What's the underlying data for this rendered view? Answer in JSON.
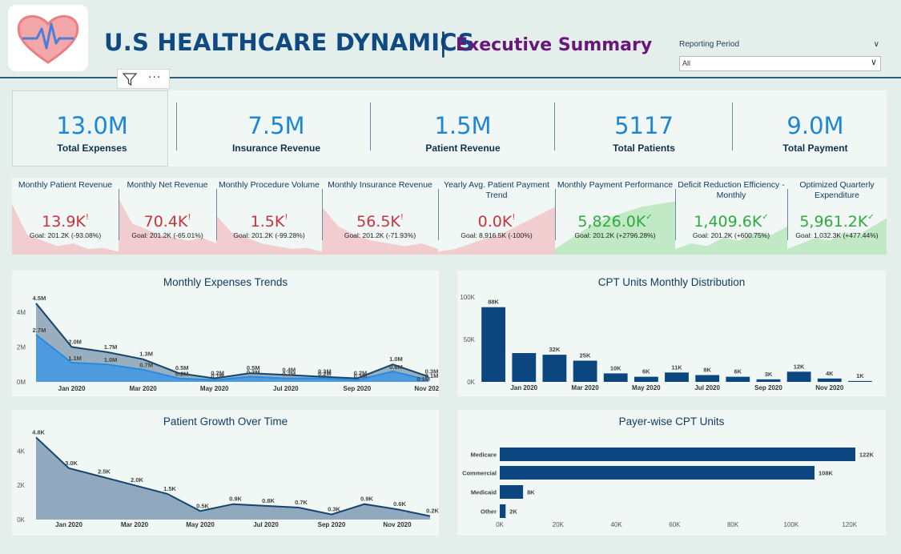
{
  "header": {
    "title": "U.S HEALTHCARE DYNAMICS",
    "separator": "|",
    "subtitle": "Executive Summary",
    "logo_icon": "heart-pulse-icon"
  },
  "filter": {
    "label": "Reporting Period",
    "value": "All"
  },
  "visual_header": {
    "filter_icon": "filter-icon",
    "more_label": "···"
  },
  "kpis": [
    {
      "value": "13.0M",
      "label": "Total Expenses"
    },
    {
      "value": "7.5M",
      "label": "Insurance Revenue"
    },
    {
      "value": "1.5M",
      "label": "Patient Revenue"
    },
    {
      "value": "5117",
      "label": "Total Patients"
    },
    {
      "value": "9.0M",
      "label": "Total Payment"
    }
  ],
  "mini_kpis": [
    {
      "title": "Monthly Patient Revenue",
      "value": "13.9K",
      "mark": "!",
      "goal": "Goal: 201.2K (-93.08%)",
      "status": "bad",
      "trend": [
        0.9,
        0.35,
        0.25,
        0.15,
        0.2,
        0.1,
        0.12,
        0.05
      ]
    },
    {
      "title": "Monthly Net Revenue",
      "value": "70.4K",
      "mark": "!",
      "goal": "Goal: 201.2K (-65.01%)",
      "status": "bad",
      "trend": [
        1.0,
        0.55,
        0.45,
        0.35,
        0.3,
        0.25,
        0.3,
        0.2
      ]
    },
    {
      "title": "Monthly Procedure Volume",
      "value": "1.5K",
      "mark": "!",
      "goal": "Goal: 201.2K (-99.28%)",
      "status": "bad",
      "trend": [
        0.7,
        0.4,
        0.3,
        0.2,
        0.15,
        0.1,
        0.12,
        0.05
      ]
    },
    {
      "title": "Monthly Insurance Revenue",
      "value": "56.5K",
      "mark": "!",
      "goal": "Goal: 201.2K (-71.93%)",
      "status": "bad",
      "trend": [
        0.85,
        0.5,
        0.35,
        0.25,
        0.2,
        0.15,
        0.2,
        0.1
      ]
    },
    {
      "title": "Yearly Avg. Patient Payment Trend",
      "value": "0.0K",
      "mark": "!",
      "goal": "Goal: 8,916.5K (-100%)",
      "status": "bad",
      "trend": [
        0.05,
        0.1,
        0.2,
        0.3,
        0.4,
        0.55,
        0.7,
        0.85
      ]
    },
    {
      "title": "Monthly Payment Performance",
      "value": "5,826.0K",
      "mark": "✓",
      "goal": "Goal: 201.2K (+2796.28%)",
      "status": "good",
      "trend": [
        0.1,
        0.3,
        0.5,
        0.65,
        0.75,
        0.85,
        0.9,
        0.95
      ]
    },
    {
      "title": "Deficit Reduction Efficiency - Monthly",
      "value": "1,409.6K",
      "mark": "✓",
      "goal": "Goal: 201.2K (+600.75%)",
      "status": "good",
      "trend": [
        0.1,
        0.2,
        0.15,
        0.3,
        0.25,
        0.4,
        0.35,
        0.5
      ]
    },
    {
      "title": "Optimized Quarterly Expenditure",
      "value": "5,961.2K",
      "mark": "✓",
      "goal": "Goal: 1,032.3K (+477.44%)",
      "status": "good",
      "trend": [
        0.1,
        0.2,
        0.3,
        0.25,
        0.4,
        0.35,
        0.5,
        0.65
      ]
    }
  ],
  "colors": {
    "accent": "#1d86d6",
    "dark_blue": "#0b4680",
    "bad": "#c9333d",
    "bad_fill": "#f1c6c8",
    "good": "#2eaa3f",
    "good_fill": "#b9e6bc",
    "area_gray": "#8fa6b9",
    "area_blue": "#3f97e3"
  },
  "chart_data": [
    {
      "type": "area",
      "title": "Monthly Expenses Trends",
      "x_ticks": [
        "Jan 2020",
        "Mar 2020",
        "May 2020",
        "Jul 2020",
        "Sep 2020",
        "Nov 2020"
      ],
      "y_ticks": [
        "0M",
        "2M",
        "4M"
      ],
      "ylim": [
        0,
        5
      ],
      "series": [
        {
          "values": [
            4.5,
            2.0,
            1.7,
            1.3,
            0.5,
            0.2,
            0.5,
            0.4,
            0.3,
            0.2,
            1.0,
            0.3
          ],
          "labels": [
            "4.5M",
            "2.0M",
            "1.7M",
            "1.3M",
            "0.5M",
            "0.2M",
            "0.5M",
            "0.4M",
            "0.3M",
            "0.2M",
            "1.0M",
            "0.3M"
          ]
        },
        {
          "values": [
            2.7,
            1.1,
            1.0,
            0.7,
            0.2,
            0.1,
            0.3,
            0.2,
            0.2,
            0.1,
            0.6,
            0.1
          ],
          "labels": [
            "2.7M",
            "1.1M",
            "1.0M",
            "0.7M",
            "0.2M",
            "0.1M",
            "0.3M",
            "0.2M",
            "0.2M",
            "0.1M",
            "0.6M",
            "0.1M"
          ]
        }
      ],
      "last_label": "0.1M"
    },
    {
      "type": "bar",
      "title": "CPT Units Monthly Distribution",
      "x_ticks": [
        "Jan 2020",
        "Mar 2020",
        "May 2020",
        "Jul 2020",
        "Sep 2020",
        "Nov 2020"
      ],
      "y_ticks": [
        "0K",
        "50K",
        "100K"
      ],
      "ylim": [
        0,
        100
      ],
      "values": [
        88,
        34,
        32,
        25,
        10,
        6,
        11,
        8,
        6,
        3,
        12,
        4,
        1
      ],
      "labels": [
        "88K",
        "",
        "32K",
        "25K",
        "10K",
        "6K",
        "11K",
        "8K",
        "6K",
        "3K",
        "12K",
        "4K",
        "1K"
      ]
    },
    {
      "type": "area",
      "title": "Patient Growth Over Time",
      "x_ticks": [
        "Jan 2020",
        "Mar 2020",
        "May 2020",
        "Jul 2020",
        "Sep 2020",
        "Nov 2020"
      ],
      "y_ticks": [
        "0K",
        "2K",
        "4K"
      ],
      "ylim": [
        0,
        5
      ],
      "values": [
        4.8,
        3.0,
        2.5,
        2.0,
        1.5,
        0.5,
        0.9,
        0.8,
        0.7,
        0.3,
        0.9,
        0.6,
        0.2
      ],
      "labels": [
        "4.8K",
        "3.0K",
        "2.5K",
        "2.0K",
        "1.5K",
        "0.5K",
        "0.9K",
        "0.8K",
        "0.7K",
        "0.3K",
        "0.9K",
        "0.6K",
        "0.2K"
      ]
    },
    {
      "type": "bar",
      "orientation": "horizontal",
      "title": "Payer-wise CPT Units",
      "categories": [
        "Medicare",
        "Commercial",
        "Medicaid",
        "Other"
      ],
      "values": [
        122,
        108,
        8,
        2
      ],
      "labels": [
        "122K",
        "108K",
        "8K",
        "2K"
      ],
      "x_ticks": [
        "0K",
        "20K",
        "40K",
        "60K",
        "80K",
        "100K",
        "120K"
      ],
      "xlim": [
        0,
        122
      ]
    }
  ]
}
